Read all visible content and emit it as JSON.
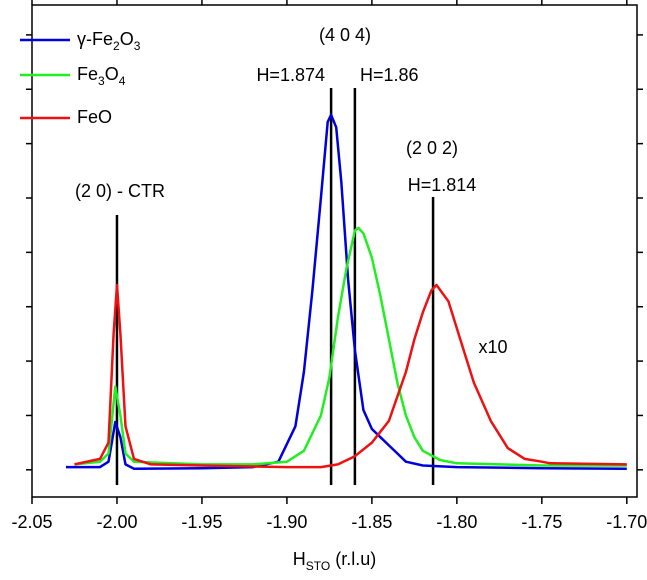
{
  "chart_data": {
    "type": "line",
    "x_label": "HSTO (r.l.u)",
    "xlim": [
      -2.05,
      -1.694
    ],
    "ylim": [
      -0.5,
      8.55
    ],
    "xticks": [
      -2.05,
      {
        "value": -2.0,
        "label": "-2.00"
      },
      -1.95,
      {
        "value": -1.9,
        "label": "-1.90"
      },
      -1.85,
      {
        "value": -1.8,
        "label": "-1.80"
      },
      -1.75,
      {
        "value": -1.7,
        "label": "-1.70"
      }
    ],
    "yticks": [
      0,
      1,
      2,
      3,
      4,
      5,
      6,
      7,
      8
    ],
    "legend": "upper left",
    "series": [
      {
        "name": "γ-Fe2O3",
        "color": "#0000dd",
        "x": [
          -2.03,
          -2.01,
          -2.005,
          -2.001,
          -1.998,
          -1.995,
          -1.99,
          -1.95,
          -1.92,
          -1.905,
          -1.895,
          -1.89,
          -1.885,
          -1.88,
          -1.876,
          -1.874,
          -1.871,
          -1.868,
          -1.864,
          -1.86,
          -1.855,
          -1.85,
          -1.845,
          -1.84,
          -1.835,
          -1.83,
          -1.82,
          -1.8,
          -1.75,
          -1.7
        ],
        "values": [
          0.05,
          0.05,
          0.15,
          0.88,
          0.6,
          0.1,
          0.02,
          0.03,
          0.05,
          0.15,
          0.8,
          1.8,
          3.3,
          5.0,
          6.4,
          6.53,
          6.3,
          5.3,
          3.5,
          2.2,
          1.1,
          0.75,
          0.6,
          0.45,
          0.3,
          0.15,
          0.08,
          0.05,
          0.03,
          0.02
        ]
      },
      {
        "name": "Fe3O4",
        "color": "#22ee22",
        "x": [
          -2.025,
          -2.01,
          -2.005,
          -2.001,
          -1.998,
          -1.995,
          -1.99,
          -1.95,
          -1.92,
          -1.9,
          -1.89,
          -1.88,
          -1.875,
          -1.87,
          -1.865,
          -1.86,
          -1.858,
          -1.855,
          -1.85,
          -1.845,
          -1.84,
          -1.835,
          -1.83,
          -1.825,
          -1.82,
          -1.81,
          -1.8,
          -1.75,
          -1.7
        ],
        "values": [
          0.1,
          0.15,
          0.3,
          1.53,
          1.0,
          0.3,
          0.15,
          0.1,
          0.1,
          0.15,
          0.35,
          1.0,
          1.7,
          2.8,
          3.7,
          4.4,
          4.45,
          4.35,
          3.9,
          3.2,
          2.4,
          1.6,
          1.0,
          0.6,
          0.35,
          0.18,
          0.12,
          0.08,
          0.08
        ]
      },
      {
        "name": "FeO",
        "color": "#ee1111",
        "x": [
          -2.025,
          -2.01,
          -2.005,
          -2.002,
          -2.0,
          -1.998,
          -1.995,
          -1.99,
          -1.98,
          -1.95,
          -1.9,
          -1.88,
          -1.87,
          -1.86,
          -1.85,
          -1.84,
          -1.83,
          -1.825,
          -1.82,
          -1.815,
          -1.812,
          -1.805,
          -1.8,
          -1.795,
          -1.79,
          -1.78,
          -1.77,
          -1.76,
          -1.75,
          -1.745,
          -1.7
        ],
        "values": [
          0.1,
          0.2,
          0.5,
          2.5,
          3.4,
          2.5,
          0.8,
          0.2,
          0.1,
          0.08,
          0.05,
          0.05,
          0.1,
          0.25,
          0.5,
          0.9,
          1.8,
          2.4,
          2.9,
          3.3,
          3.4,
          3.1,
          2.6,
          2.1,
          1.6,
          0.9,
          0.4,
          0.2,
          0.15,
          0.12,
          0.1
        ]
      }
    ],
    "vlines": [
      {
        "x": -2.0,
        "label": "(2 0) - CTR"
      },
      {
        "x": -1.874,
        "label": "H=1.874"
      },
      {
        "x": -1.86,
        "label": "H=1.86"
      },
      {
        "x": -1.814,
        "label": "H=1.814"
      }
    ],
    "annotations": [
      "(4 0 4)",
      "(2 0 2)",
      "x10"
    ]
  }
}
